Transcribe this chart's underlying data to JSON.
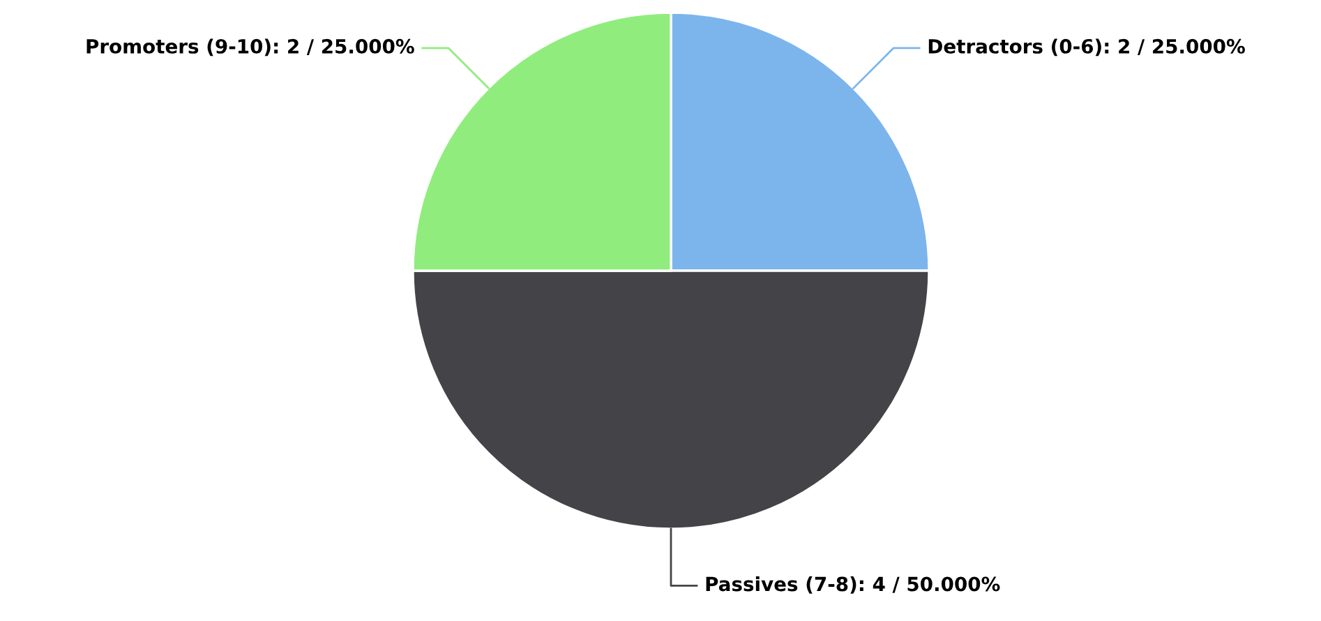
{
  "chart_data": {
    "type": "pie",
    "categories": [
      "Detractors (0-6)",
      "Passives (7-8)",
      "Promoters (9-10)"
    ],
    "values": [
      2,
      4,
      2
    ],
    "value_labels": [
      "2 / 25.000%",
      "4 / 50.000%",
      "2 / 25.000%"
    ],
    "colors": [
      "#7cb5ec",
      "#434348",
      "#90ed7d"
    ]
  }
}
